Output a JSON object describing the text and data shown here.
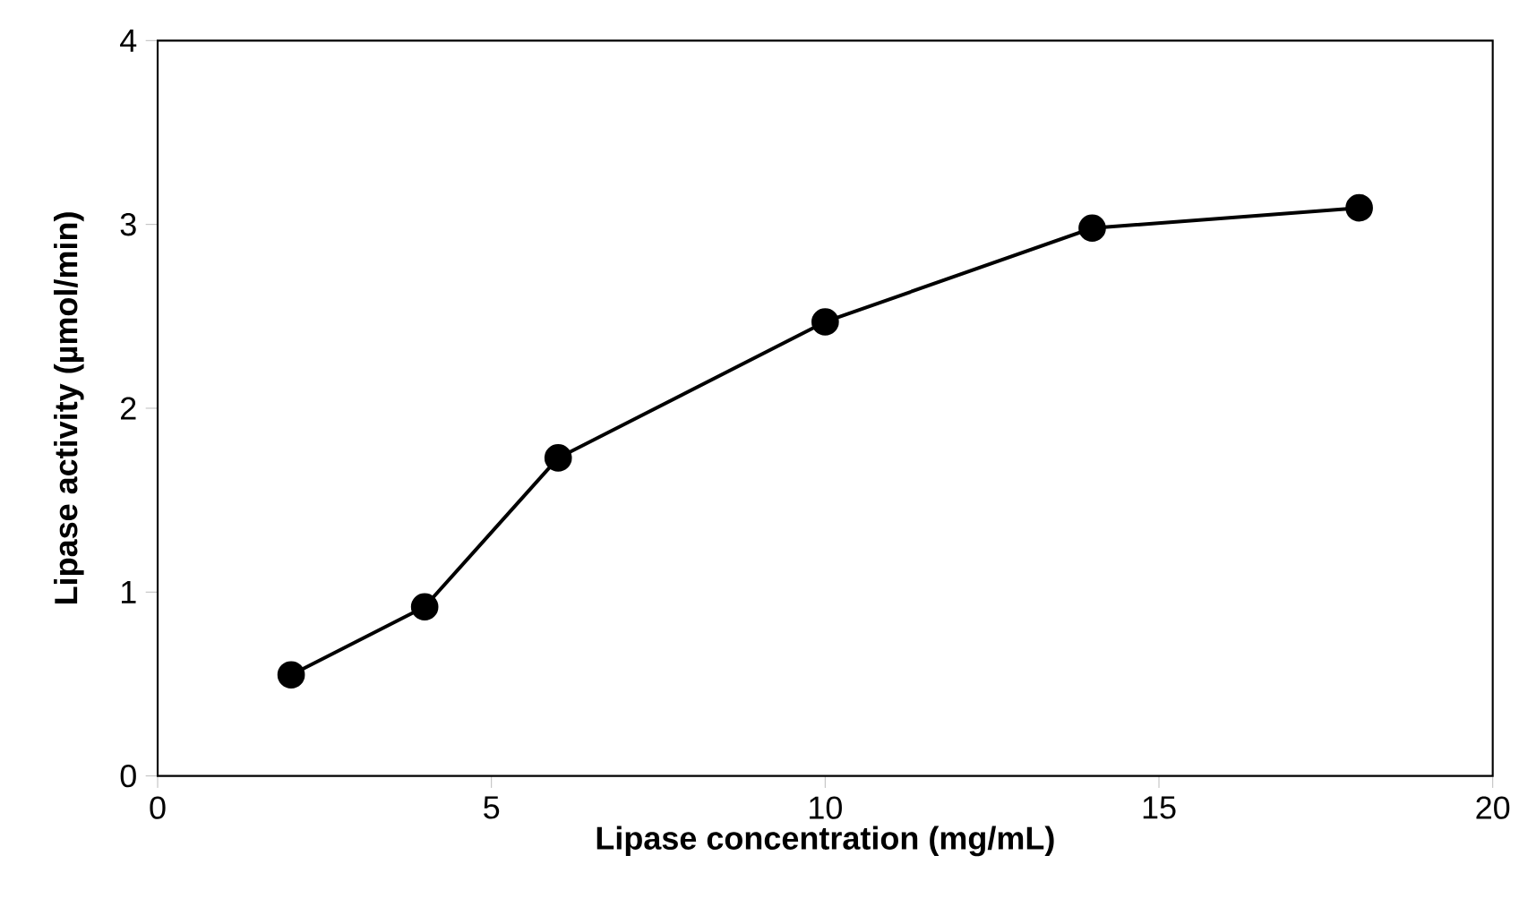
{
  "chart_data": {
    "type": "line",
    "xlabel": "Lipase concentration (mg/mL)",
    "ylabel": "Lipase activity (µmol/min)",
    "x": [
      2,
      4,
      6,
      10,
      14,
      18
    ],
    "series": [
      {
        "color": "#000000",
        "values": [
          0.55,
          0.92,
          1.73,
          2.47,
          2.98,
          3.09
        ]
      }
    ],
    "xlim": [
      0,
      20
    ],
    "ylim": [
      0,
      4
    ],
    "xticks": [
      0,
      5,
      10,
      15,
      20
    ],
    "yticks": [
      0,
      1,
      2,
      3,
      4
    ],
    "marker": "circle",
    "line_style": "solid",
    "grid": false
  }
}
